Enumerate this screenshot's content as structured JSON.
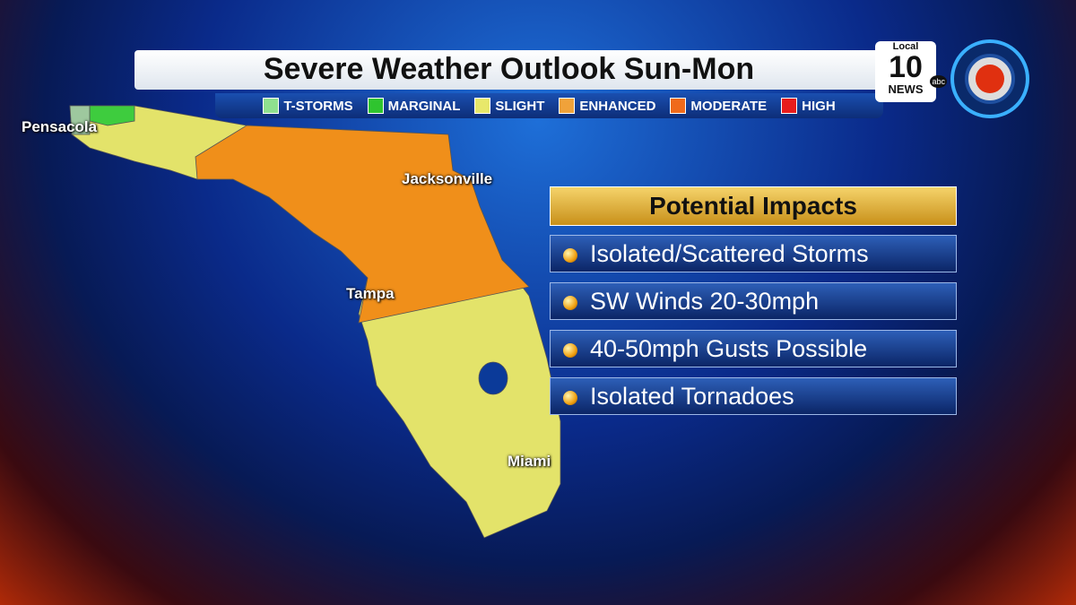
{
  "header": {
    "title": "Severe Weather Outlook Sun-Mon"
  },
  "legend": [
    {
      "label": "T-STORMS",
      "color": "#8fe08f"
    },
    {
      "label": "MARGINAL",
      "color": "#2fc42f"
    },
    {
      "label": "SLIGHT",
      "color": "#e8e86a"
    },
    {
      "label": "ENHANCED",
      "color": "#f0a23a"
    },
    {
      "label": "MODERATE",
      "color": "#f06a1a"
    },
    {
      "label": "HIGH",
      "color": "#e81c1c"
    }
  ],
  "map": {
    "cities": [
      "Pensacola",
      "Jacksonville",
      "Tampa",
      "Miami"
    ]
  },
  "impacts": {
    "title": "Potential Impacts",
    "items": [
      "Isolated/Scattered Storms",
      "SW Winds 20-30mph",
      "40-50mph Gusts Possible",
      "Isolated Tornadoes"
    ]
  },
  "logo": {
    "top": "Local",
    "number": "10",
    "bottom": "NEWS",
    "network": "abc"
  }
}
